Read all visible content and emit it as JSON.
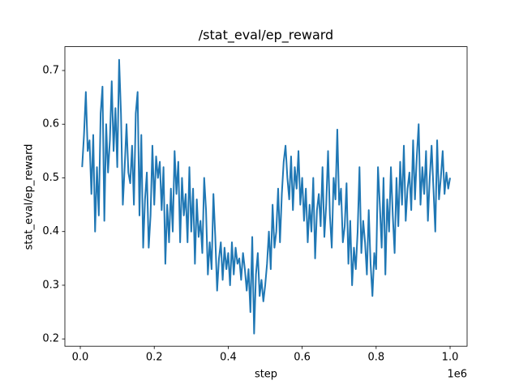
{
  "chart_data": {
    "type": "line",
    "title": "/stat_eval/ep_reward",
    "x_label": "step",
    "y_label": "stat_eval/ep_reward",
    "x_offset_label": "1e6",
    "x": [
      5000,
      10000,
      15000,
      20000,
      25000,
      30000,
      35000,
      40000,
      45000,
      50000,
      55000,
      60000,
      65000,
      70000,
      75000,
      80000,
      85000,
      90000,
      95000,
      100000,
      105000,
      110000,
      115000,
      120000,
      125000,
      130000,
      135000,
      140000,
      145000,
      150000,
      155000,
      160000,
      165000,
      170000,
      175000,
      180000,
      185000,
      190000,
      195000,
      200000,
      205000,
      210000,
      215000,
      220000,
      225000,
      230000,
      235000,
      240000,
      245000,
      250000,
      255000,
      260000,
      265000,
      270000,
      275000,
      280000,
      285000,
      290000,
      295000,
      300000,
      305000,
      310000,
      315000,
      320000,
      325000,
      330000,
      335000,
      340000,
      345000,
      350000,
      355000,
      360000,
      365000,
      370000,
      375000,
      380000,
      385000,
      390000,
      395000,
      400000,
      405000,
      410000,
      415000,
      420000,
      425000,
      430000,
      435000,
      440000,
      445000,
      450000,
      455000,
      460000,
      465000,
      470000,
      475000,
      480000,
      485000,
      490000,
      495000,
      500000,
      505000,
      510000,
      515000,
      520000,
      525000,
      530000,
      535000,
      540000,
      545000,
      550000,
      555000,
      560000,
      565000,
      570000,
      575000,
      580000,
      585000,
      590000,
      595000,
      600000,
      605000,
      610000,
      615000,
      620000,
      625000,
      630000,
      635000,
      640000,
      645000,
      650000,
      655000,
      660000,
      665000,
      670000,
      675000,
      680000,
      685000,
      690000,
      695000,
      700000,
      705000,
      710000,
      715000,
      720000,
      725000,
      730000,
      735000,
      740000,
      745000,
      750000,
      755000,
      760000,
      765000,
      770000,
      775000,
      780000,
      785000,
      790000,
      795000,
      800000,
      805000,
      810000,
      815000,
      820000,
      825000,
      830000,
      835000,
      840000,
      845000,
      850000,
      855000,
      860000,
      865000,
      870000,
      875000,
      880000,
      885000,
      890000,
      895000,
      900000,
      905000,
      910000,
      915000,
      920000,
      925000,
      930000,
      935000,
      940000,
      945000,
      950000,
      955000,
      960000,
      965000,
      970000,
      975000,
      980000,
      985000,
      990000,
      995000,
      1000000
    ],
    "series": [
      {
        "color": "#1f77b4",
        "values": [
          0.52,
          0.58,
          0.66,
          0.55,
          0.57,
          0.47,
          0.58,
          0.4,
          0.52,
          0.43,
          0.62,
          0.67,
          0.42,
          0.6,
          0.51,
          0.57,
          0.68,
          0.55,
          0.63,
          0.52,
          0.72,
          0.62,
          0.45,
          0.52,
          0.6,
          0.51,
          0.49,
          0.56,
          0.45,
          0.62,
          0.66,
          0.43,
          0.58,
          0.37,
          0.46,
          0.51,
          0.37,
          0.43,
          0.56,
          0.45,
          0.54,
          0.5,
          0.53,
          0.44,
          0.52,
          0.34,
          0.45,
          0.38,
          0.48,
          0.4,
          0.55,
          0.47,
          0.53,
          0.38,
          0.5,
          0.43,
          0.47,
          0.38,
          0.52,
          0.4,
          0.48,
          0.34,
          0.46,
          0.39,
          0.42,
          0.36,
          0.5,
          0.44,
          0.32,
          0.38,
          0.33,
          0.47,
          0.39,
          0.29,
          0.35,
          0.38,
          0.31,
          0.37,
          0.33,
          0.36,
          0.3,
          0.38,
          0.32,
          0.37,
          0.34,
          0.35,
          0.31,
          0.36,
          0.33,
          0.29,
          0.33,
          0.25,
          0.39,
          0.21,
          0.32,
          0.36,
          0.28,
          0.31,
          0.27,
          0.3,
          0.34,
          0.4,
          0.33,
          0.45,
          0.37,
          0.4,
          0.48,
          0.38,
          0.47,
          0.53,
          0.56,
          0.5,
          0.46,
          0.54,
          0.44,
          0.52,
          0.48,
          0.55,
          0.45,
          0.5,
          0.42,
          0.48,
          0.38,
          0.45,
          0.4,
          0.5,
          0.35,
          0.44,
          0.47,
          0.41,
          0.52,
          0.39,
          0.45,
          0.55,
          0.43,
          0.37,
          0.5,
          0.46,
          0.59,
          0.45,
          0.48,
          0.38,
          0.41,
          0.49,
          0.34,
          0.42,
          0.3,
          0.37,
          0.33,
          0.4,
          0.52,
          0.36,
          0.42,
          0.38,
          0.32,
          0.44,
          0.34,
          0.28,
          0.36,
          0.33,
          0.52,
          0.45,
          0.37,
          0.5,
          0.32,
          0.46,
          0.4,
          0.52,
          0.43,
          0.36,
          0.5,
          0.41,
          0.53,
          0.45,
          0.56,
          0.42,
          0.48,
          0.51,
          0.44,
          0.57,
          0.46,
          0.54,
          0.6,
          0.45,
          0.52,
          0.47,
          0.55,
          0.42,
          0.5,
          0.56,
          0.48,
          0.4,
          0.57,
          0.46,
          0.5,
          0.55,
          0.47,
          0.51,
          0.48,
          0.5
        ]
      }
    ],
    "xlim": [
      -41700,
      1046000
    ],
    "xticks": [
      {
        "value": 0,
        "label": "0.0"
      },
      {
        "value": 200000,
        "label": "0.2"
      },
      {
        "value": 400000,
        "label": "0.4"
      },
      {
        "value": 600000,
        "label": "0.6"
      },
      {
        "value": 800000,
        "label": "0.8"
      },
      {
        "value": 1000000,
        "label": "1.0"
      }
    ],
    "ylim": [
      0.1864,
      0.7444
    ],
    "yticks": [
      0.2,
      0.3,
      0.4,
      0.5,
      0.6,
      0.7
    ]
  }
}
